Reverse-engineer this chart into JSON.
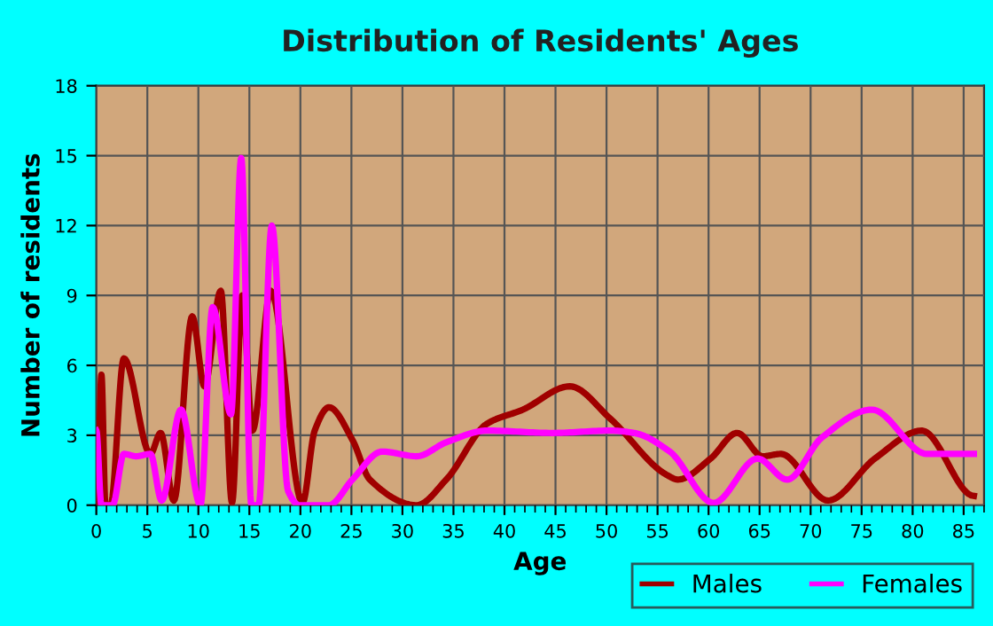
{
  "chart_data": {
    "type": "line",
    "title": "Distribution of Residents' Ages",
    "xlabel": "Age",
    "ylabel": "Number of residents",
    "xlim": [
      0,
      87
    ],
    "xticks": [
      0,
      5,
      10,
      15,
      20,
      25,
      30,
      35,
      40,
      45,
      50,
      55,
      60,
      65,
      70,
      75,
      80,
      85
    ],
    "ylim": [
      0,
      18
    ],
    "yticks": [
      0,
      3,
      6,
      9,
      12,
      15,
      18
    ],
    "grid": true,
    "legend": "bottom right",
    "marker": "none",
    "line_style": "solid",
    "series": [
      {
        "name": "Males",
        "color": "#a00000",
        "x": [
          0.1,
          0.5,
          0.9,
          1.4,
          2.7,
          5.3,
          6.3,
          7.6,
          9.4,
          10.6,
          12.2,
          13.3,
          14.3,
          15.3,
          17.1,
          20.2,
          21.4,
          22.8,
          25.1,
          26.8,
          31.4,
          34.3,
          38.3,
          41.8,
          46.4,
          50.4,
          55.9,
          57.0,
          60.2,
          62.8,
          65.3,
          67.1,
          71.7,
          76.3,
          80.9,
          86.0
        ],
        "values": [
          0,
          5.6,
          0,
          0,
          6.3,
          2.2,
          3.1,
          0.2,
          8.1,
          5.1,
          9.2,
          0.1,
          9.0,
          3.2,
          9.2,
          0.1,
          3.2,
          4.2,
          2.8,
          1.1,
          0,
          1.1,
          3.5,
          4.1,
          5.1,
          3.7,
          1.3,
          1.1,
          2.0,
          3.1,
          2.1,
          2.2,
          0.2,
          2.0,
          3.2,
          0.4
        ]
      },
      {
        "name": "Females",
        "color": "#ff00ff",
        "x": [
          0,
          0.5,
          1.6,
          2.7,
          3.9,
          5.3,
          6.4,
          8.3,
          10.2,
          11.4,
          13.2,
          14.2,
          15.2,
          15.9,
          17.2,
          18.8,
          19.9,
          22.8,
          25.1,
          28.0,
          31.4,
          34.3,
          38.3,
          44.7,
          50.4,
          52.7,
          56.2,
          60.5,
          64.8,
          67.7,
          71.1,
          76.0,
          81.4,
          86.0
        ],
        "values": [
          3.2,
          0,
          0,
          2.2,
          2.1,
          2.2,
          0.2,
          4.1,
          0,
          8.5,
          3.9,
          14.9,
          0,
          0,
          12.0,
          0.6,
          0,
          0,
          1.1,
          2.3,
          2.1,
          2.7,
          3.2,
          3.1,
          3.2,
          3.1,
          2.3,
          0.1,
          2.0,
          1.1,
          2.9,
          4.1,
          2.2,
          2.2
        ]
      }
    ]
  }
}
